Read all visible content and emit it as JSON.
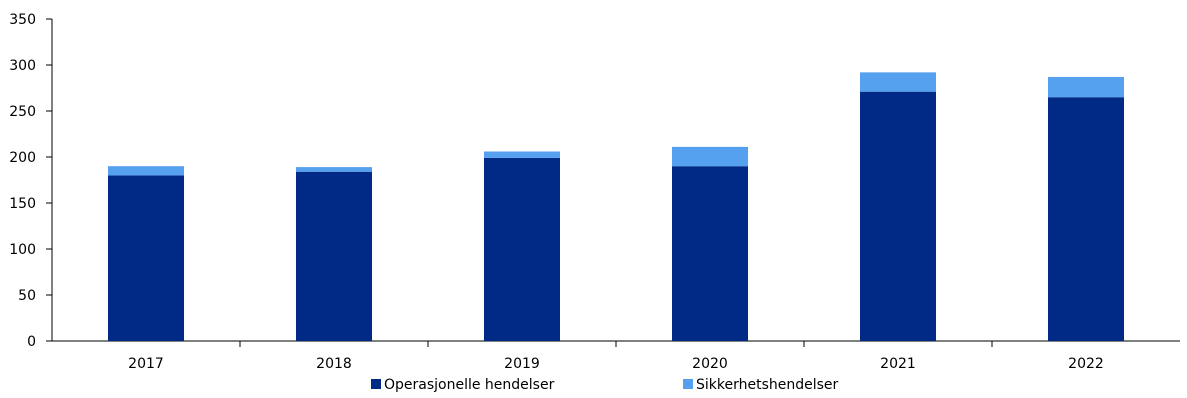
{
  "chart_data": {
    "type": "bar",
    "stacked": true,
    "categories": [
      "2017",
      "2018",
      "2019",
      "2020",
      "2021",
      "2022"
    ],
    "series": [
      {
        "name": "Operasjonelle hendelser",
        "color": "#002a85",
        "values": [
          180,
          184,
          199,
          190,
          271,
          265
        ]
      },
      {
        "name": "Sikkerhetshendelser",
        "color": "#56a0f0",
        "values": [
          10,
          5,
          7,
          21,
          21,
          22
        ]
      }
    ],
    "title": "",
    "xlabel": "",
    "ylabel": "",
    "ylim": [
      0,
      350
    ],
    "yticks": [
      0,
      50,
      100,
      150,
      200,
      250,
      300,
      350
    ],
    "grid": false,
    "legend_position": "bottom-center"
  }
}
